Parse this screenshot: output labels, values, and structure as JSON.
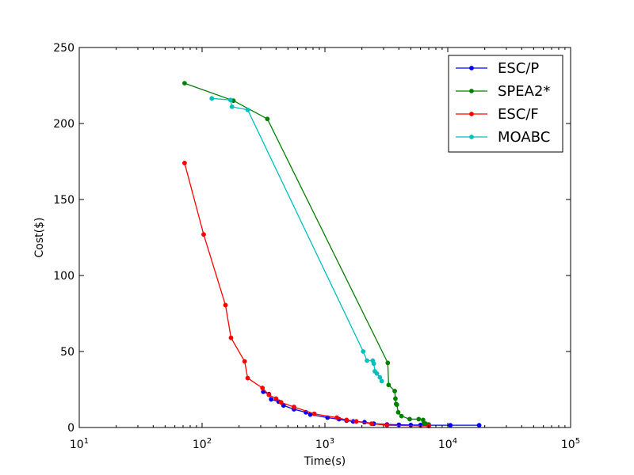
{
  "chart_data": {
    "type": "line",
    "title": "",
    "xlabel": "Time(s)",
    "ylabel": "Cost($)",
    "xscale": "log",
    "xlim": [
      10,
      100000
    ],
    "ylim": [
      0,
      250
    ],
    "x_ticks": [
      {
        "value": 10,
        "base": "10",
        "exp": "1"
      },
      {
        "value": 100,
        "base": "10",
        "exp": "2"
      },
      {
        "value": 1000,
        "base": "10",
        "exp": "3"
      },
      {
        "value": 10000,
        "base": "10",
        "exp": "4"
      },
      {
        "value": 100000,
        "base": "10",
        "exp": "5"
      }
    ],
    "y_ticks": [
      "0",
      "50",
      "100",
      "150",
      "200",
      "250"
    ],
    "grid": false,
    "legend_position": "top-right",
    "series": [
      {
        "name": "ESC/P",
        "color": "#0000ff",
        "x": [
          315,
          350,
          365,
          420,
          460,
          560,
          700,
          760,
          1050,
          1300,
          1500,
          1700,
          2100,
          2500,
          3200,
          4000,
          5000,
          6000,
          7000,
          10500,
          18000
        ],
        "y": [
          23.5,
          22,
          18.5,
          17,
          14.5,
          12,
          10,
          8.5,
          6.5,
          5.5,
          4.5,
          4,
          3.5,
          2.5,
          2,
          1.8,
          1.6,
          1.6,
          1.5,
          1.5,
          1.5
        ]
      },
      {
        "name": "SPEA2*",
        "color": "#008000",
        "x": [
          72,
          180,
          340,
          3250,
          3300,
          3700,
          3750,
          3800,
          3850,
          3950,
          4200,
          4900,
          5800,
          6300,
          6400,
          6600,
          7000
        ],
        "y": [
          226.5,
          215,
          203,
          42.5,
          28,
          24,
          19,
          15.5,
          15,
          10,
          7.5,
          5.5,
          5.5,
          5,
          3,
          2.5,
          2
        ]
      },
      {
        "name": "ESC/F",
        "color": "#ff0000",
        "x": [
          72,
          103,
          155,
          172,
          222,
          235,
          310,
          350,
          400,
          440,
          560,
          820,
          1250,
          1500,
          1800,
          2400,
          3200,
          7000
        ],
        "y": [
          174,
          127,
          80.5,
          59,
          43.5,
          32.5,
          26,
          21.5,
          19,
          16.5,
          13.5,
          9,
          6.5,
          5,
          4,
          2.5,
          1.5,
          1
        ]
      },
      {
        "name": "MOABC",
        "color": "#00bfbf",
        "x": [
          120,
          170,
          175,
          235,
          2050,
          2200,
          2450,
          2500,
          2550,
          2650,
          2800,
          2900
        ],
        "y": [
          216.5,
          215.5,
          211,
          209,
          50,
          44,
          44,
          42,
          37,
          35.5,
          33,
          30.5
        ]
      }
    ]
  }
}
